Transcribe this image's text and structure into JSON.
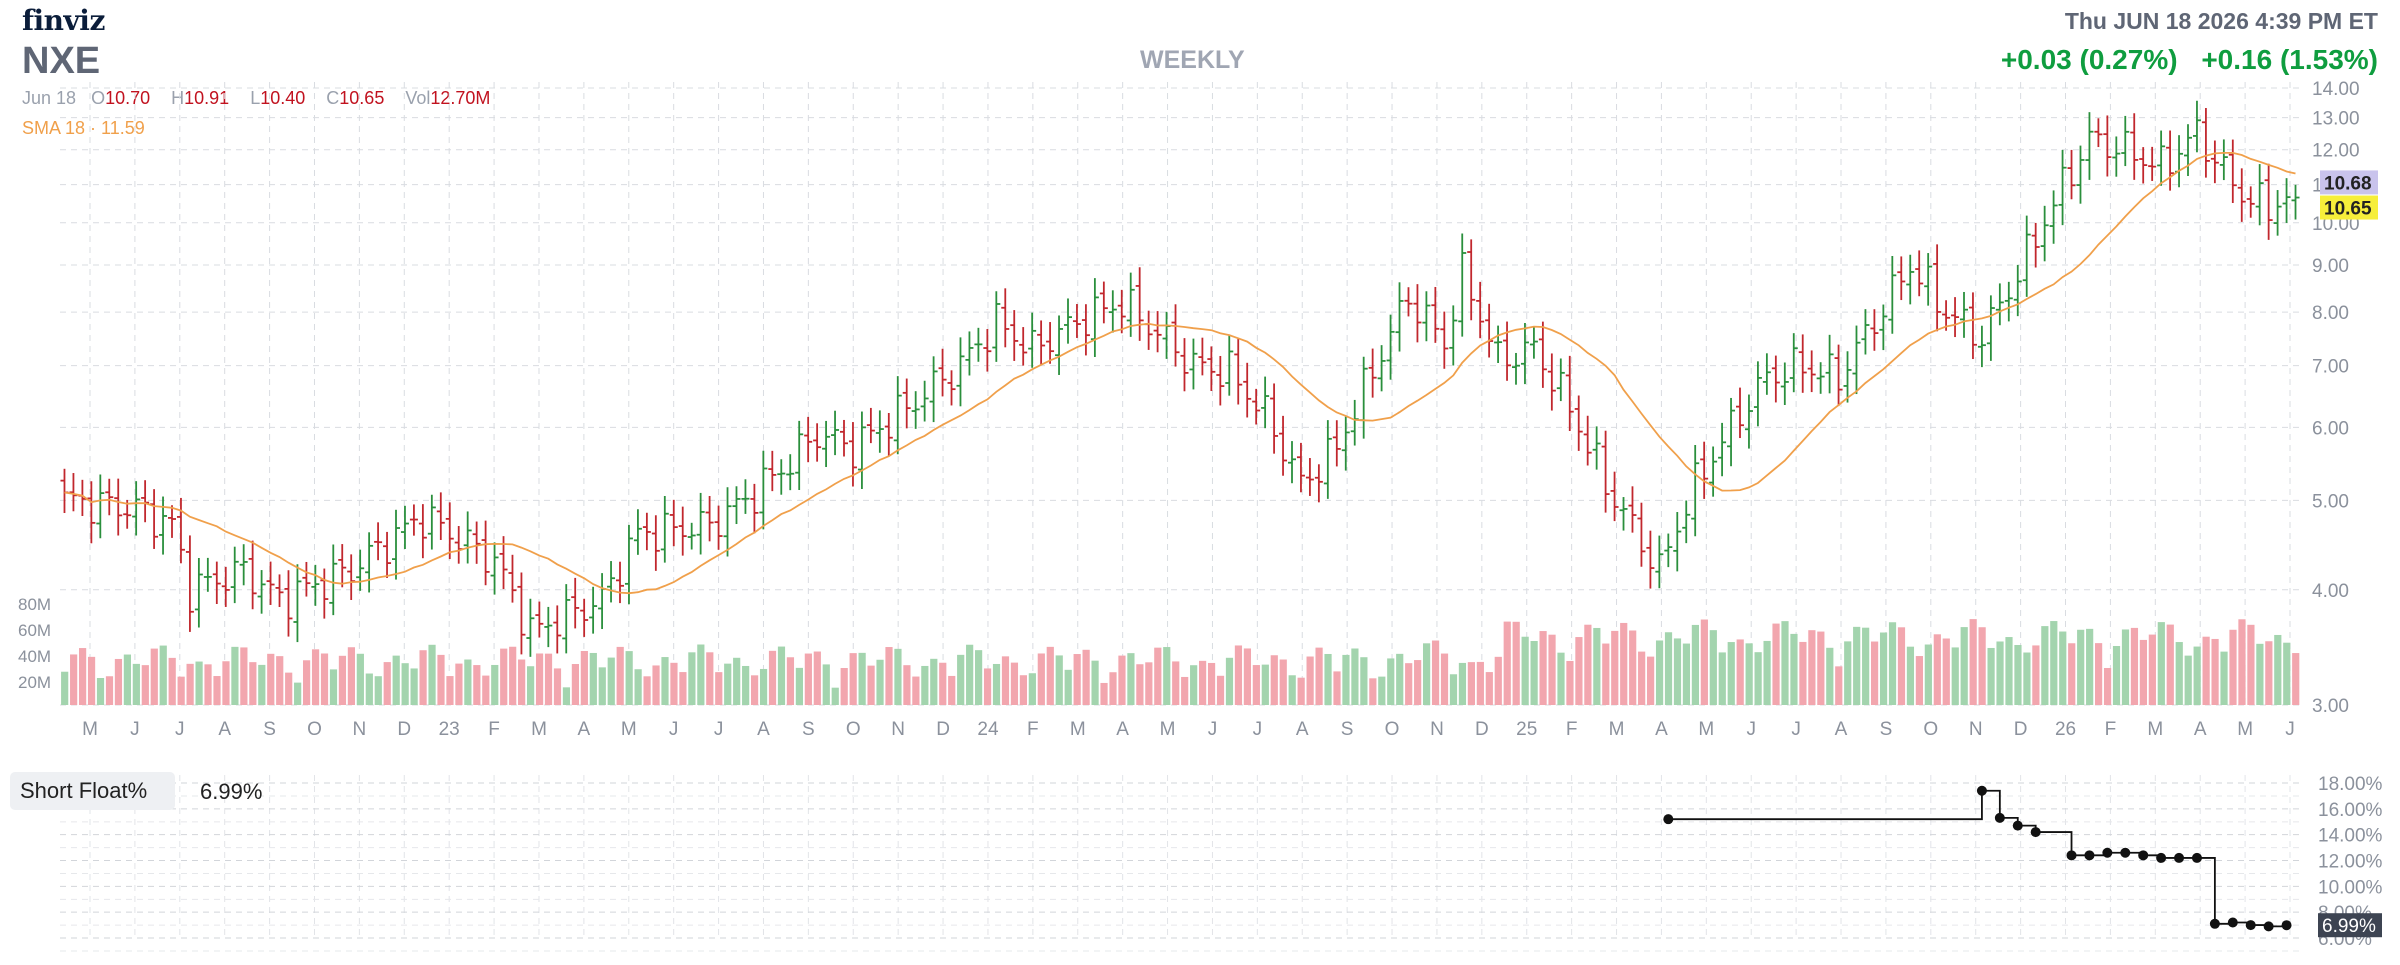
{
  "header": {
    "logo": "finviz",
    "ticker": "NXE",
    "timeframe": "WEEKLY",
    "datetime": "Thu JUN 18 2026 4:39 PM ET",
    "change_1": "+0.03 (0.27%)",
    "change_2": "+0.16 (1.53%)"
  },
  "ohlc": {
    "date": "Jun 18",
    "open_label": "O",
    "open": "10.70",
    "high_label": "H",
    "high": "10.91",
    "low_label": "L",
    "low": "10.40",
    "close_label": "C",
    "close": "10.65",
    "vol_label": "Vol",
    "vol": "12.70M"
  },
  "sma": {
    "label": "SMA 18",
    "value": "11.59"
  },
  "short_float": {
    "label": "Short Float%",
    "value": "6.99%"
  },
  "colors": {
    "up": "#2a8f3c",
    "down": "#c1272d",
    "sma": "#f0a04b",
    "vol_up": "#a3d4ae",
    "vol_down": "#f2a6ae",
    "last_close_bg": "#f6ee3a",
    "prev_close_bg": "#c9c3ec",
    "short_badge_bg": "#3d4452"
  },
  "chart_data": [
    {
      "type": "ohlc",
      "frequency": "weekly",
      "y_scale": "log",
      "ylim": [
        3.0,
        14.0
      ],
      "y_ticks": [
        "14.00",
        "13.00",
        "12.00",
        "11.00",
        "10.00",
        "9.00",
        "8.00",
        "7.00",
        "6.00",
        "5.00",
        "4.00",
        "3.00"
      ],
      "x_tick_labels": [
        "M",
        "J",
        "J",
        "A",
        "S",
        "O",
        "N",
        "D",
        "23",
        "F",
        "M",
        "A",
        "M",
        "J",
        "J",
        "A",
        "S",
        "O",
        "N",
        "D",
        "24",
        "F",
        "M",
        "A",
        "M",
        "J",
        "J",
        "A",
        "S",
        "O",
        "N",
        "D",
        "25",
        "F",
        "M",
        "A",
        "M",
        "J",
        "J",
        "A",
        "S",
        "O",
        "N",
        "D",
        "26",
        "F",
        "M",
        "A",
        "M",
        "J"
      ],
      "close_waypoints": [
        [
          0,
          5.0
        ],
        [
          8,
          4.9
        ],
        [
          12,
          4.7
        ],
        [
          14,
          4.0
        ],
        [
          20,
          4.2
        ],
        [
          24,
          3.9
        ],
        [
          32,
          4.2
        ],
        [
          36,
          4.5
        ],
        [
          40,
          4.8
        ],
        [
          48,
          4.3
        ],
        [
          52,
          3.6
        ],
        [
          60,
          3.9
        ],
        [
          64,
          4.6
        ],
        [
          72,
          4.7
        ],
        [
          76,
          5.0
        ],
        [
          80,
          5.4
        ],
        [
          84,
          5.9
        ],
        [
          88,
          5.7
        ],
        [
          94,
          6.3
        ],
        [
          100,
          7.0
        ],
        [
          104,
          7.8
        ],
        [
          108,
          7.3
        ],
        [
          114,
          7.9
        ],
        [
          118,
          8.2
        ],
        [
          122,
          7.6
        ],
        [
          126,
          7.0
        ],
        [
          130,
          6.9
        ],
        [
          134,
          6.2
        ],
        [
          138,
          5.2
        ],
        [
          142,
          5.7
        ],
        [
          146,
          6.9
        ],
        [
          150,
          8.3
        ],
        [
          154,
          7.4
        ],
        [
          156,
          8.8
        ],
        [
          160,
          7.1
        ],
        [
          164,
          7.3
        ],
        [
          168,
          6.3
        ],
        [
          172,
          5.2
        ],
        [
          176,
          4.5
        ],
        [
          178,
          4.2
        ],
        [
          182,
          5.2
        ],
        [
          186,
          6.0
        ],
        [
          190,
          6.8
        ],
        [
          194,
          7.0
        ],
        [
          198,
          6.8
        ],
        [
          202,
          7.8
        ],
        [
          206,
          9.0
        ],
        [
          210,
          8.0
        ],
        [
          214,
          7.5
        ],
        [
          218,
          8.8
        ],
        [
          222,
          10.5
        ],
        [
          226,
          12.3
        ],
        [
          230,
          12.0
        ],
        [
          234,
          11.5
        ],
        [
          238,
          12.5
        ],
        [
          242,
          11.0
        ],
        [
          244,
          10.6
        ],
        [
          246,
          10.4
        ],
        [
          248,
          10.65
        ]
      ],
      "last_close": "10.65",
      "prev_close": "10.68",
      "volume_ticks": [
        "80M",
        "60M",
        "40M",
        "20M"
      ]
    },
    {
      "type": "line",
      "name": "Short Float%",
      "ylim": [
        6.0,
        18.0
      ],
      "y_ticks": [
        "18.00%",
        "16.00%",
        "14.00%",
        "12.00%",
        "10.00%",
        "8.00%",
        "6.00%"
      ],
      "points": [
        [
          179,
          15.2
        ],
        [
          214,
          15.2
        ],
        [
          214,
          17.4
        ],
        [
          216,
          15.3
        ],
        [
          218,
          14.7
        ],
        [
          220,
          14.2
        ],
        [
          224,
          12.4
        ],
        [
          226,
          12.4
        ],
        [
          228,
          12.6
        ],
        [
          230,
          12.6
        ],
        [
          232,
          12.4
        ],
        [
          234,
          12.2
        ],
        [
          236,
          12.2
        ],
        [
          238,
          12.2
        ],
        [
          240,
          7.1
        ],
        [
          242,
          7.2
        ],
        [
          244,
          7.0
        ],
        [
          246,
          6.9
        ],
        [
          248,
          6.99
        ]
      ],
      "last_value": "6.99%"
    }
  ]
}
